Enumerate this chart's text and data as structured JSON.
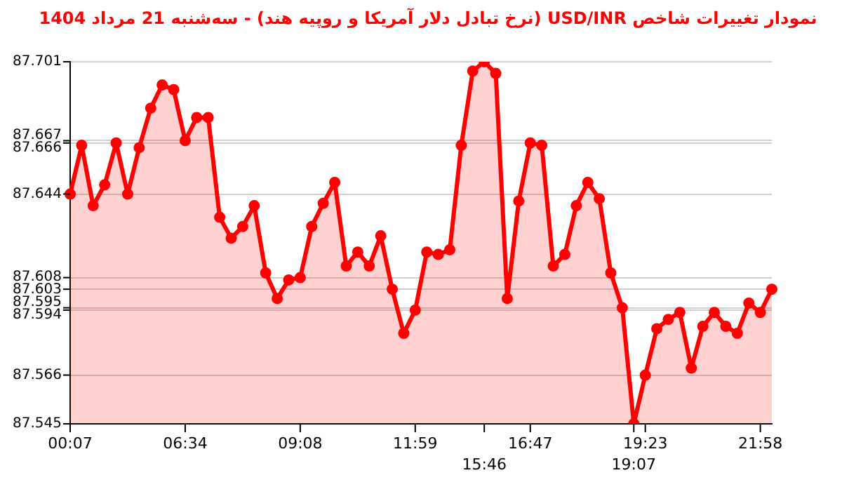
{
  "chart_data": {
    "type": "area",
    "title": "نمودار تغییرات شاخص USD/INR (نرخ تبادل دلار آمریکا و روپیه هند) - سه‌شنبه  21 مرداد 1404",
    "categories": [
      "00:07",
      null,
      null,
      null,
      null,
      null,
      null,
      null,
      null,
      null,
      "06:34",
      null,
      null,
      null,
      null,
      null,
      null,
      null,
      null,
      null,
      "09:08",
      null,
      null,
      null,
      null,
      null,
      null,
      null,
      null,
      null,
      "11:59",
      null,
      null,
      null,
      null,
      null,
      "15:46",
      null,
      null,
      null,
      "16:47",
      null,
      null,
      null,
      null,
      null,
      null,
      null,
      null,
      "19:07",
      "19:23",
      null,
      null,
      null,
      null,
      null,
      null,
      null,
      null,
      null,
      "21:58",
      null
    ],
    "series": [
      {
        "color": "#ff0000",
        "values": [
          87.644,
          87.665,
          87.639,
          87.648,
          87.666,
          87.644,
          87.664,
          87.681,
          87.691,
          87.689,
          87.667,
          87.677,
          87.677,
          87.634,
          87.625,
          87.63,
          87.639,
          87.61,
          87.599,
          87.607,
          87.608,
          87.63,
          87.64,
          87.649,
          87.613,
          87.619,
          87.613,
          87.626,
          87.603,
          87.584,
          87.594,
          87.619,
          87.618,
          87.62,
          87.665,
          87.697,
          87.701,
          87.696,
          87.599,
          87.641,
          87.666,
          87.665,
          87.613,
          87.618,
          87.639,
          87.649,
          87.642,
          87.61,
          87.595,
          87.545,
          87.566,
          87.586,
          87.59,
          87.593,
          87.569,
          87.587,
          87.593,
          87.587,
          87.584,
          87.597,
          87.593,
          87.603
        ]
      }
    ],
    "ylim": [
      87.545,
      87.701
    ],
    "yticks": [
      87.545,
      87.566,
      87.594,
      87.595,
      87.603,
      87.608,
      87.644,
      87.666,
      87.667,
      87.701
    ],
    "grid": "y",
    "marker": "circle",
    "legend": false
  }
}
